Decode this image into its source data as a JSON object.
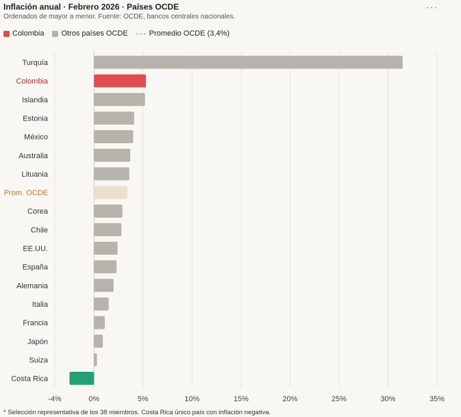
{
  "header": {
    "title": "Inflación anual · Febrero 2026 · Países OCDE",
    "subtitle": "Ordenados de mayor a menor. Fuente: OCDE, bancos centrales nacionales.",
    "more_icon": "more-horizontal-icon"
  },
  "legend": {
    "colombia": "Colombia",
    "others": "Otros países OCDE",
    "average": "Promedio OCDE (3,4%)"
  },
  "colors": {
    "colombia": "#de4e4e",
    "others": "#b6b3aa",
    "average": "#eddfce",
    "negative": "#23a074",
    "colombia_label": "#a8322d",
    "average_label": "#c0782a",
    "average_line": "#c59253"
  },
  "chart_data": {
    "type": "bar",
    "orientation": "horizontal",
    "title": "Inflación anual · Febrero 2026 · Países OCDE",
    "xlabel": "",
    "ylabel": "",
    "xlim": [
      -4,
      35
    ],
    "xticks": [
      -4,
      0,
      5,
      10,
      15,
      20,
      25,
      30,
      35
    ],
    "xtick_labels": [
      "-4%",
      "0%",
      "5%",
      "10%",
      "15%",
      "20%",
      "25%",
      "30%",
      "35%"
    ],
    "grid": true,
    "categories": [
      "Turquía",
      "Colombia",
      "Islandia",
      "Estonia",
      "México",
      "Australia",
      "Lituania",
      "Prom. OCDE",
      "Corea",
      "Chile",
      "EE.UU.",
      "España",
      "Alemania",
      "Italia",
      "Francia",
      "Japón",
      "Suiza",
      "Costa Rica"
    ],
    "values": [
      31.5,
      5.3,
      5.2,
      4.1,
      4.0,
      3.7,
      3.6,
      3.4,
      2.9,
      2.8,
      2.4,
      2.3,
      2.0,
      1.5,
      1.1,
      0.9,
      0.3,
      -2.5
    ],
    "highlight": "Colombia",
    "average": 3.4
  },
  "footnote": "* Selección representativa de los 38 miembros. Costa Rica único país con inflación negativa."
}
